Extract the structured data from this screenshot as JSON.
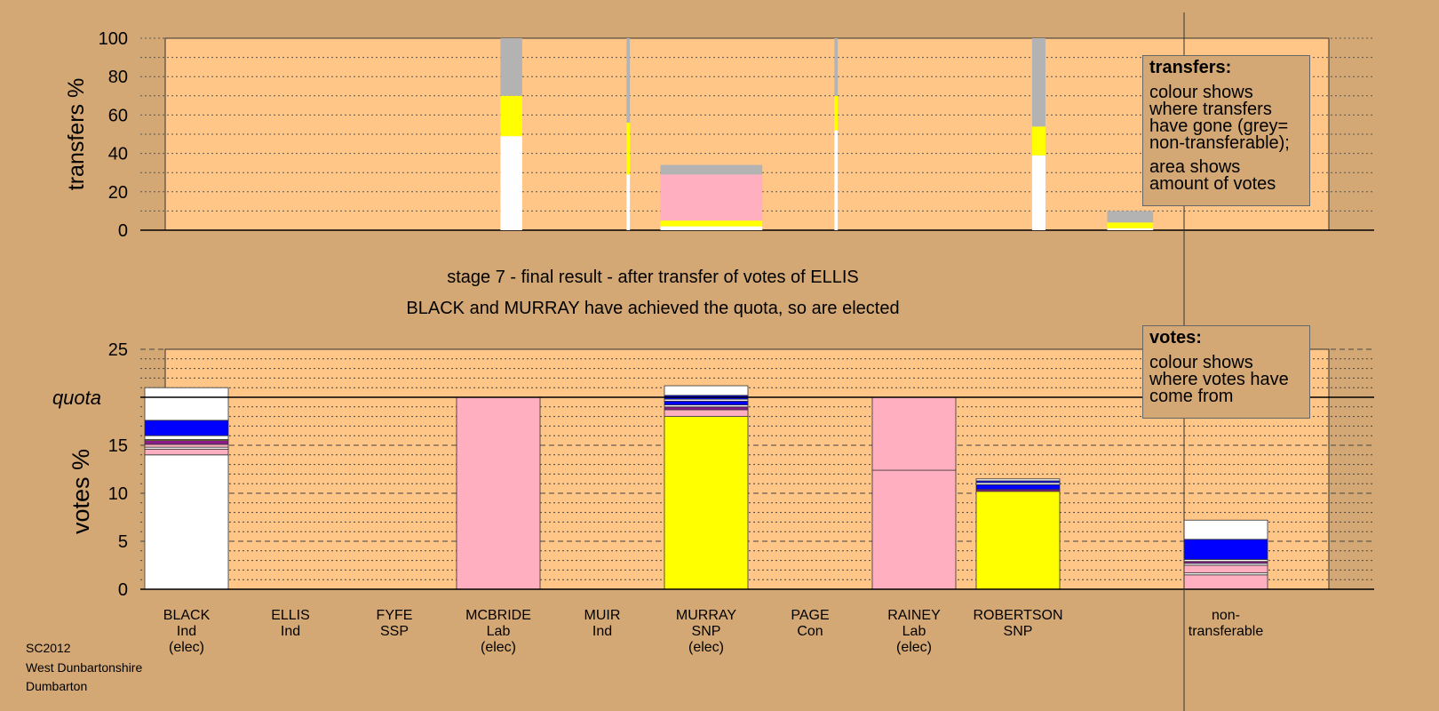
{
  "colors": {
    "background": "#d4a875",
    "plot_area": "#ffc688",
    "Ind": "#ffffff",
    "Lab": "#ffafc0",
    "SNP": "#ffff00",
    "Con": "#0000ff",
    "SSP": "#8b1a8b",
    "non_transferable": "#b3b3b3"
  },
  "captions": {
    "line1": "stage 7 - final result - after transfer of votes of ELLIS",
    "line2": "BLACK and MURRAY have achieved the quota, so are elected"
  },
  "legend": {
    "transfers": {
      "title": "transfers:",
      "text1": "colour shows where transfers have gone (grey= non-transferable);",
      "text2": "area shows amount of votes"
    },
    "votes": {
      "title": "votes:",
      "text1": "colour shows where votes have come from"
    }
  },
  "credits": {
    "line1": "SC2012",
    "line2": "West Dunbartonshire",
    "line3": "Dumbarton"
  },
  "chart_data": [
    {
      "type": "bar",
      "ylabel": "transfers %",
      "ylim": [
        0,
        100
      ],
      "yticks": [
        0,
        20,
        40,
        60,
        80,
        100
      ],
      "grid": "dotted every 10",
      "note": "stacked transfer bars; bar widths proportional to amount of votes transferred",
      "bars": [
        {
          "candidate": "BLACK",
          "x": 3.125,
          "width": 0.26,
          "segments": [
            {
              "party": "Ind",
              "value": 49
            },
            {
              "party": "SNP",
              "value": 21
            },
            {
              "party": "non_transferable",
              "value": 30
            }
          ]
        },
        {
          "candidate": "FYFE",
          "x": 4.25,
          "width": 0.04,
          "segments": [
            {
              "party": "Ind",
              "value": 29
            },
            {
              "party": "SNP",
              "value": 27
            },
            {
              "party": "non_transferable",
              "value": 44
            }
          ]
        },
        {
          "candidate": "MCBRIDE",
          "x": 5.05,
          "width": 1.22,
          "segments": [
            {
              "party": "Ind",
              "value": 2
            },
            {
              "party": "SNP",
              "value": 3
            },
            {
              "party": "Lab",
              "value": 24
            },
            {
              "party": "non_transferable",
              "value": 5
            }
          ]
        },
        {
          "candidate": "MUIR",
          "x": 6.25,
          "width": 0.04,
          "segments": [
            {
              "party": "Ind",
              "value": 52
            },
            {
              "party": "SNP",
              "value": 18
            },
            {
              "party": "non_transferable",
              "value": 30
            }
          ]
        },
        {
          "candidate": "MURRAY",
          "x": 8.2,
          "width": 0.16,
          "segments": [
            {
              "party": "Ind",
              "value": 39
            },
            {
              "party": "SNP",
              "value": 15
            },
            {
              "party": "non_transferable",
              "value": 46
            }
          ]
        },
        {
          "candidate": "RAINEY",
          "x": 9.08,
          "width": 0.55,
          "segments": [
            {
              "party": "Ind",
              "value": 1
            },
            {
              "party": "SNP",
              "value": 3
            },
            {
              "party": "non_transferable",
              "value": 6
            }
          ]
        }
      ]
    },
    {
      "type": "bar",
      "ylabel": "votes %",
      "ylim": [
        0,
        25
      ],
      "yticks": [
        0,
        5,
        10,
        15,
        20,
        25
      ],
      "quota": 20,
      "quota_label": "quota",
      "grid": "dashed every 5, dotted every 1",
      "categories": [
        {
          "name": "BLACK",
          "party": "Ind",
          "status": "(elec)"
        },
        {
          "name": "ELLIS",
          "party": "Ind",
          "status": ""
        },
        {
          "name": "FYFE",
          "party": "SSP",
          "status": ""
        },
        {
          "name": "MCBRIDE",
          "party": "Lab",
          "status": "(elec)"
        },
        {
          "name": "MUIR",
          "party": "Ind",
          "status": ""
        },
        {
          "name": "MURRAY",
          "party": "SNP",
          "status": "(elec)"
        },
        {
          "name": "PAGE",
          "party": "Con",
          "status": ""
        },
        {
          "name": "RAINEY",
          "party": "Lab",
          "status": "(elec)"
        },
        {
          "name": "ROBERTSON",
          "party": "SNP",
          "status": ""
        },
        {
          "name": "non-",
          "party": "transferable",
          "status": ""
        }
      ],
      "bar_positions": [
        0,
        1,
        2,
        3,
        4,
        5,
        6,
        7,
        8,
        10
      ],
      "stacks": [
        [
          {
            "party": "Ind",
            "value": 14.0
          },
          {
            "party": "Lab",
            "value": 0.6
          },
          {
            "party": "Ind",
            "value": 0.2
          },
          {
            "party": "Lab",
            "value": 0.3
          },
          {
            "party": "SSP",
            "value": 0.4
          },
          {
            "party": "SNP",
            "value": 0.1
          },
          {
            "party": "Ind",
            "value": 0.4
          },
          {
            "party": "Con",
            "value": 1.6
          },
          {
            "party": "Ind",
            "value": 3.4
          }
        ],
        [],
        [],
        [
          {
            "party": "Lab",
            "value": 20.0
          }
        ],
        [],
        [
          {
            "party": "SNP",
            "value": 18.0
          },
          {
            "party": "Lab",
            "value": 0.7
          },
          {
            "party": "SSP",
            "value": 0.3
          },
          {
            "party": "Ind",
            "value": 0.2
          },
          {
            "party": "Con",
            "value": 0.4
          },
          {
            "party": "Ind",
            "value": 0.2
          },
          {
            "party": "Con",
            "value": 0.4
          },
          {
            "party": "Ind",
            "value": 1.0
          }
        ],
        [],
        [
          {
            "party": "Lab",
            "value": 12.4
          },
          {
            "party": "Lab",
            "value": 7.6
          }
        ],
        [
          {
            "party": "SNP",
            "value": 10.2
          },
          {
            "party": "SSP",
            "value": 0.2
          },
          {
            "party": "Con",
            "value": 0.5
          },
          {
            "party": "Ind",
            "value": 0.2
          },
          {
            "party": "Con",
            "value": 0.2
          },
          {
            "party": "Ind",
            "value": 0.2
          }
        ],
        [
          {
            "party": "Lab",
            "value": 1.5
          },
          {
            "party": "Ind",
            "value": 0.2
          },
          {
            "party": "Lab",
            "value": 0.8
          },
          {
            "party": "Ind",
            "value": 0.2
          },
          {
            "party": "SSP",
            "value": 0.2
          },
          {
            "party": "Ind",
            "value": 0.2
          },
          {
            "party": "Con",
            "value": 2.1
          },
          {
            "party": "Ind",
            "value": 2.0
          }
        ]
      ]
    }
  ]
}
